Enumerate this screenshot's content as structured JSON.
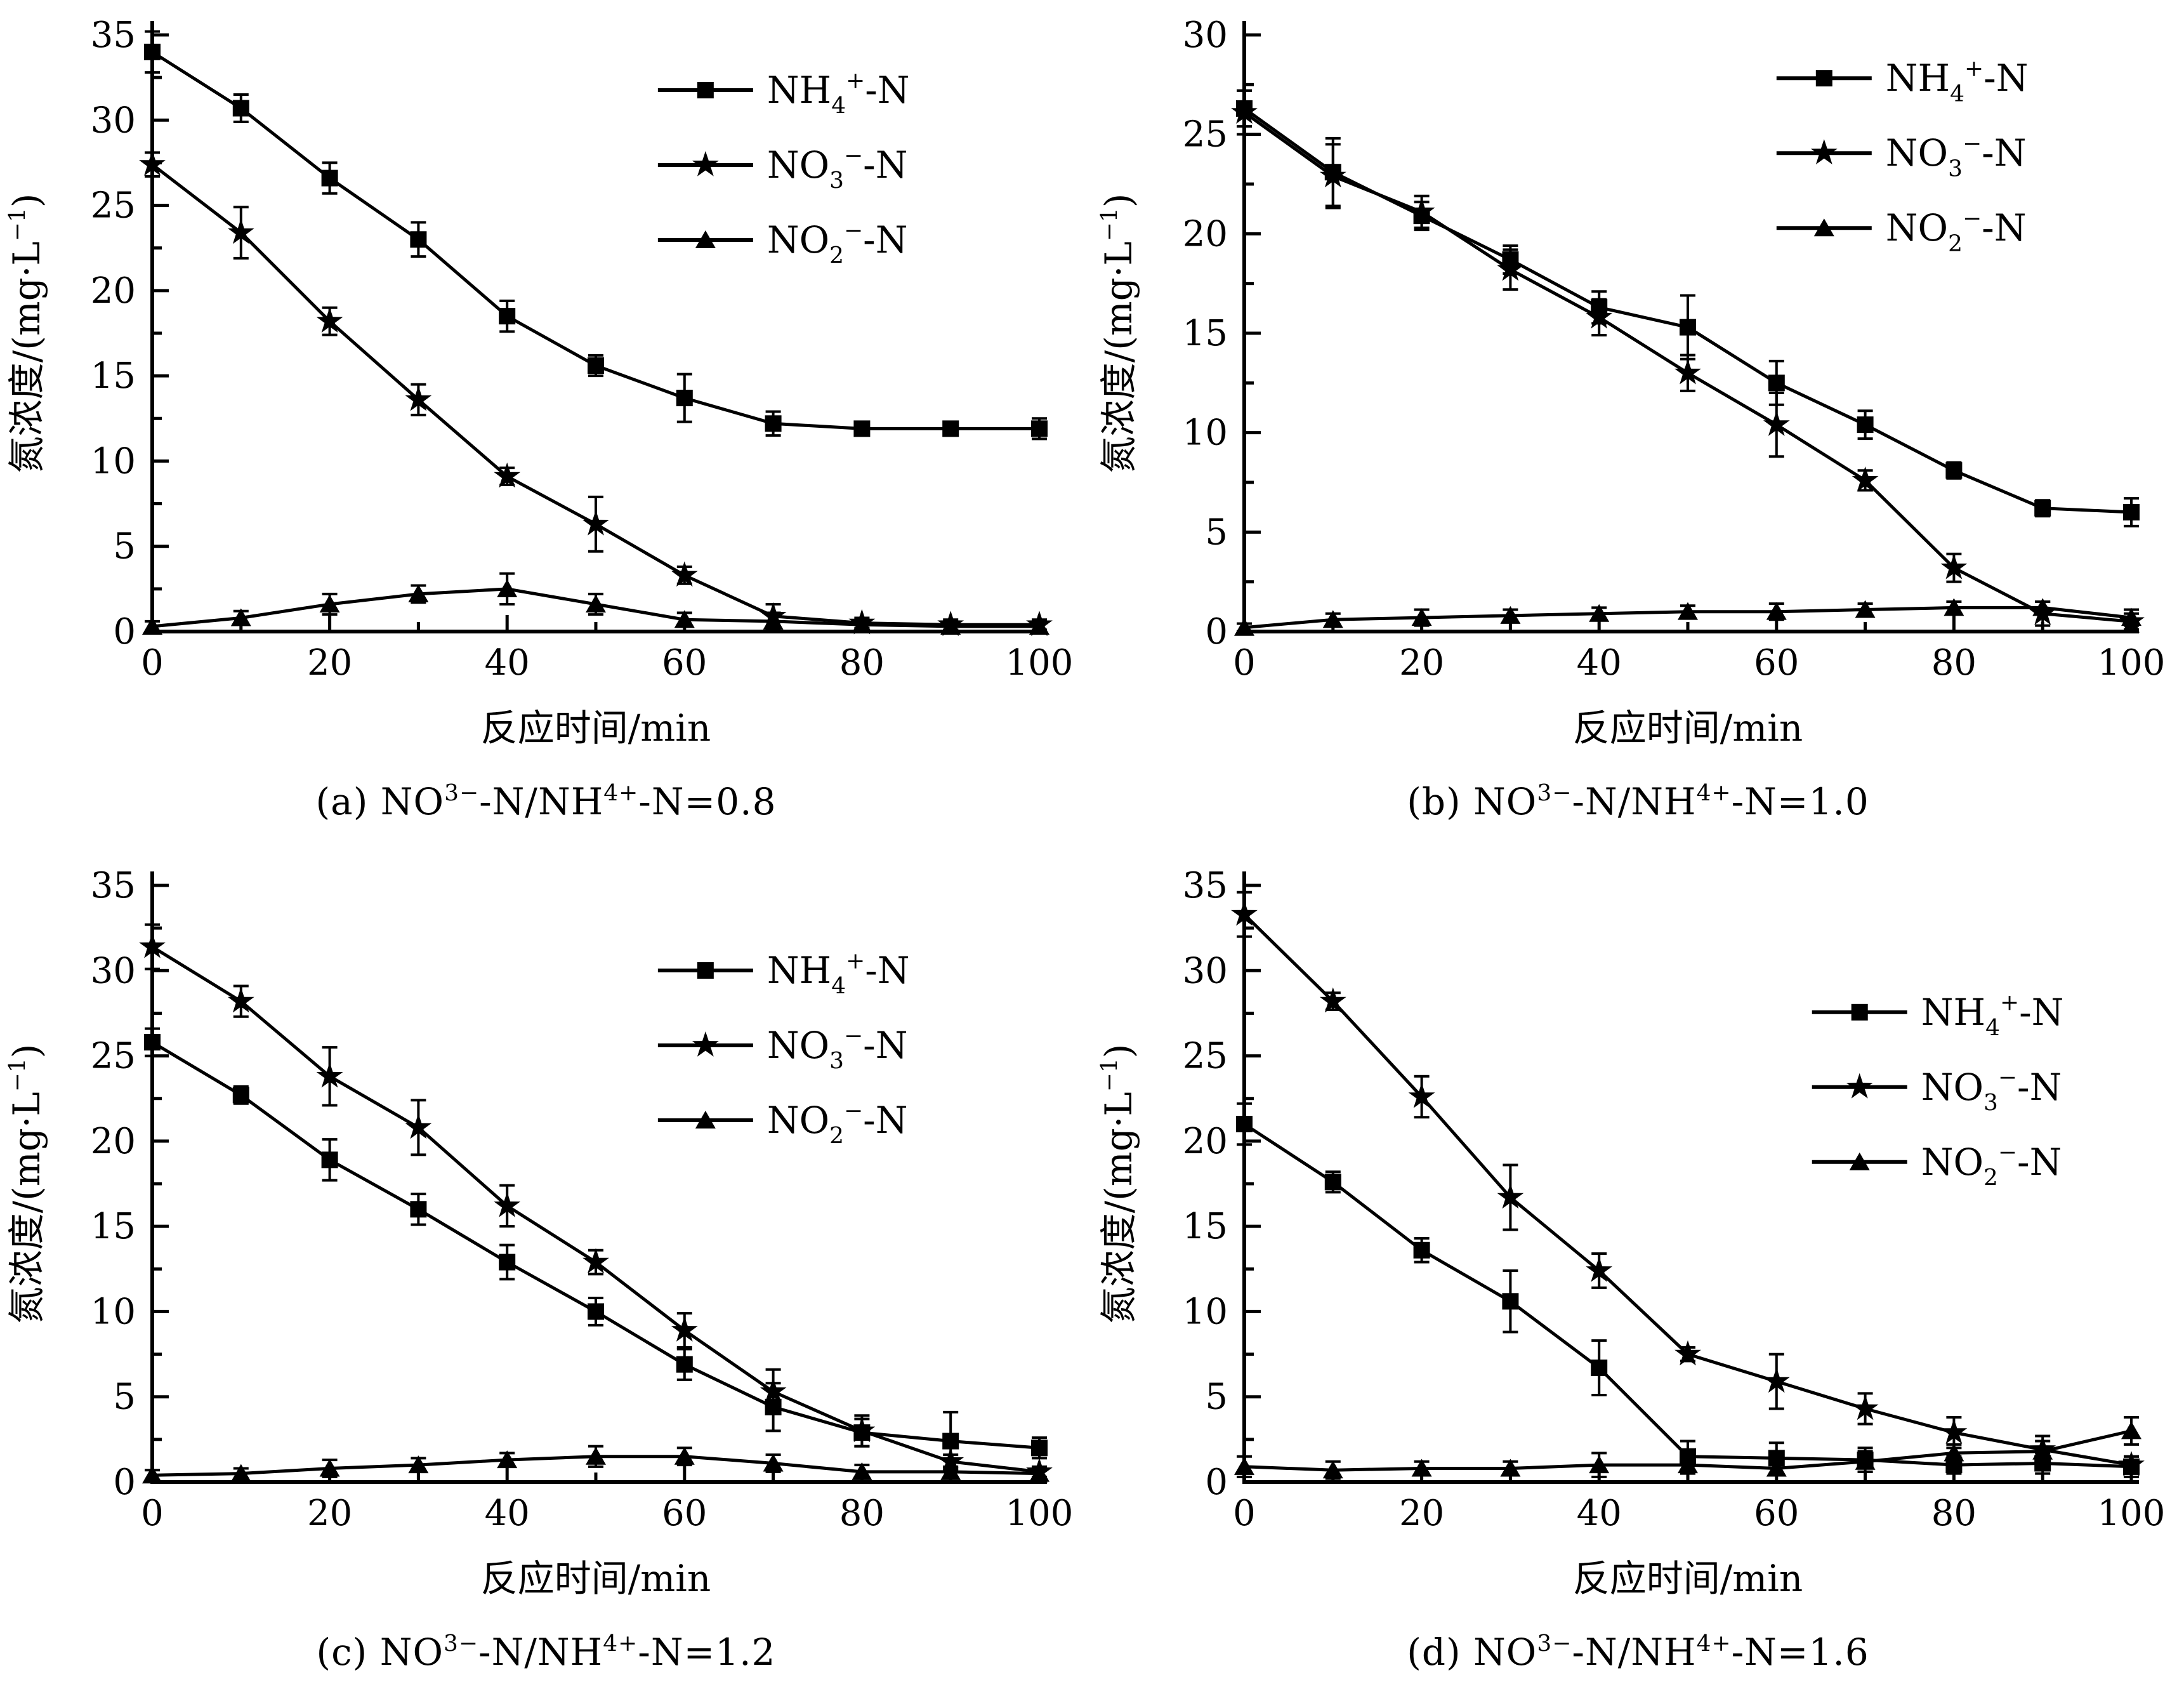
{
  "figure": {
    "xlabel": "反应时间/min",
    "ylabel": "氮浓度/(mg·L⁻¹)",
    "x_major_ticks": [
      0,
      20,
      40,
      60,
      80,
      100
    ],
    "x_minor_step": 10,
    "y_minor_step": 2.5,
    "colors": {
      "ink": "#000000",
      "paper": "#ffffff"
    }
  },
  "legend_entries": [
    {
      "marker": "square",
      "label": "NH₄⁺-N"
    },
    {
      "marker": "star",
      "label": "NO₃⁻-N"
    },
    {
      "marker": "triangle",
      "label": "NO₂⁻-N"
    }
  ],
  "chart_data": [
    {
      "id": "a",
      "type": "line",
      "caption": "(a) NO₃⁻-N/NH₄⁺-N=0.8",
      "xlabel": "反应时间/min",
      "ylabel": "氮浓度/(mg·L⁻¹)",
      "x": [
        0,
        10,
        20,
        30,
        40,
        50,
        60,
        70,
        80,
        90,
        100
      ],
      "xlim": [
        0,
        100
      ],
      "ylim": [
        0,
        35
      ],
      "ytick_step": 5,
      "legend_pos": {
        "x": 0.57,
        "y": 0.05
      },
      "series": [
        {
          "name": "NH₄⁺-N",
          "marker": "square",
          "values": [
            34.0,
            30.7,
            26.6,
            23.0,
            18.5,
            15.6,
            13.7,
            12.2,
            11.9,
            11.9,
            11.9
          ],
          "errors": [
            1.2,
            0.8,
            0.9,
            1.0,
            0.9,
            0.6,
            1.4,
            0.7,
            0.3,
            0.3,
            0.6
          ]
        },
        {
          "name": "NO₃⁻-N",
          "marker": "star",
          "values": [
            27.4,
            23.4,
            18.2,
            13.6,
            9.1,
            6.3,
            3.3,
            0.9,
            0.5,
            0.4,
            0.4
          ],
          "errors": [
            0.7,
            1.5,
            0.8,
            0.9,
            0.5,
            1.6,
            0.5,
            0.7,
            0.3,
            0.3,
            0.3
          ]
        },
        {
          "name": "NO₂⁻-N",
          "marker": "triangle",
          "values": [
            0.3,
            0.8,
            1.6,
            2.2,
            2.5,
            1.6,
            0.7,
            0.6,
            0.4,
            0.3,
            0.3
          ],
          "errors": [
            0.3,
            0.4,
            0.6,
            0.5,
            0.9,
            0.6,
            0.4,
            0.5,
            0.3,
            0.2,
            0.2
          ]
        }
      ]
    },
    {
      "id": "b",
      "type": "line",
      "caption": "(b) NO₃⁻-N/NH₄⁺-N=1.0",
      "xlabel": "反应时间/min",
      "ylabel": "氮浓度/(mg·L⁻¹)",
      "x": [
        0,
        10,
        20,
        30,
        40,
        50,
        60,
        70,
        80,
        90,
        100
      ],
      "xlim": [
        0,
        100
      ],
      "ylim": [
        0,
        30
      ],
      "ytick_step": 5,
      "legend_pos": {
        "x": 0.6,
        "y": 0.03
      },
      "series": [
        {
          "name": "NH₄⁺-N",
          "marker": "square",
          "values": [
            26.3,
            23.1,
            20.9,
            18.7,
            16.3,
            15.3,
            12.5,
            10.4,
            8.1,
            6.2,
            6.0
          ],
          "errors": [
            0.9,
            1.7,
            0.7,
            0.7,
            0.8,
            1.6,
            1.1,
            0.7,
            0.4,
            0.4,
            0.7
          ]
        },
        {
          "name": "NO₃⁻-N",
          "marker": "star",
          "values": [
            26.1,
            22.9,
            21.1,
            18.2,
            15.8,
            13.0,
            10.4,
            7.6,
            3.2,
            0.9,
            0.5
          ],
          "errors": [
            1.1,
            1.6,
            0.8,
            1.0,
            0.9,
            0.9,
            1.6,
            0.5,
            0.7,
            0.6,
            0.4
          ]
        },
        {
          "name": "NO₂⁻-N",
          "marker": "triangle",
          "values": [
            0.2,
            0.6,
            0.7,
            0.8,
            0.9,
            1.0,
            1.0,
            1.1,
            1.2,
            1.2,
            0.7
          ],
          "errors": [
            0.2,
            0.3,
            0.4,
            0.3,
            0.3,
            0.3,
            0.4,
            0.3,
            0.3,
            0.3,
            0.4
          ]
        }
      ]
    },
    {
      "id": "c",
      "type": "line",
      "caption": "(c) NO₃⁻-N/NH₄⁺-N=1.2",
      "xlabel": "反应时间/min",
      "ylabel": "氮浓度/(mg·L⁻¹)",
      "x": [
        0,
        10,
        20,
        30,
        40,
        50,
        60,
        70,
        80,
        90,
        100
      ],
      "xlim": [
        0,
        100
      ],
      "ylim": [
        0,
        35
      ],
      "ytick_step": 5,
      "legend_pos": {
        "x": 0.57,
        "y": 0.1
      },
      "series": [
        {
          "name": "NH₄⁺-N",
          "marker": "square",
          "values": [
            25.8,
            22.7,
            18.9,
            16.0,
            12.9,
            10.0,
            6.9,
            4.4,
            2.9,
            2.4,
            2.0
          ],
          "errors": [
            0.8,
            0.5,
            1.2,
            0.9,
            1.0,
            0.8,
            0.9,
            1.4,
            0.8,
            1.7,
            0.6
          ]
        },
        {
          "name": "NO₃⁻-N",
          "marker": "star",
          "values": [
            31.4,
            28.2,
            23.8,
            20.8,
            16.2,
            12.9,
            8.9,
            5.3,
            3.0,
            1.2,
            0.6
          ],
          "errors": [
            1.3,
            0.9,
            1.7,
            1.6,
            1.2,
            0.7,
            1.0,
            1.3,
            0.9,
            0.4,
            0.3
          ]
        },
        {
          "name": "NO₂⁻-N",
          "marker": "triangle",
          "values": [
            0.4,
            0.5,
            0.8,
            1.0,
            1.3,
            1.5,
            1.5,
            1.1,
            0.6,
            0.6,
            0.5
          ],
          "errors": [
            0.3,
            0.3,
            0.5,
            0.4,
            0.4,
            0.6,
            0.5,
            0.5,
            0.4,
            0.3,
            0.3
          ]
        }
      ]
    },
    {
      "id": "d",
      "type": "line",
      "caption": "(d) NO₃⁻-N/NH₄⁺-N=1.6",
      "xlabel": "反应时间/min",
      "ylabel": "氮浓度/(mg·L⁻¹)",
      "x": [
        0,
        10,
        20,
        30,
        40,
        50,
        60,
        70,
        80,
        90,
        100
      ],
      "xlim": [
        0,
        100
      ],
      "ylim": [
        0,
        35
      ],
      "ytick_step": 5,
      "legend_pos": {
        "x": 0.64,
        "y": 0.17
      },
      "series": [
        {
          "name": "NH₄⁺-N",
          "marker": "square",
          "values": [
            21.0,
            17.6,
            13.6,
            10.6,
            6.7,
            1.5,
            1.4,
            1.3,
            1.0,
            1.1,
            0.9
          ],
          "errors": [
            1.2,
            0.6,
            0.7,
            1.8,
            1.6,
            0.9,
            0.9,
            0.7,
            0.5,
            0.6,
            0.6
          ]
        },
        {
          "name": "NO₃⁻-N",
          "marker": "star",
          "values": [
            33.3,
            28.2,
            22.6,
            16.7,
            12.4,
            7.5,
            5.9,
            4.3,
            2.9,
            1.9,
            1.0
          ],
          "errors": [
            1.3,
            0.5,
            1.2,
            1.9,
            1.0,
            0.4,
            1.6,
            0.9,
            0.9,
            0.8,
            0.5
          ]
        },
        {
          "name": "NO₂⁻-N",
          "marker": "triangle",
          "values": [
            0.9,
            0.7,
            0.8,
            0.8,
            1.0,
            1.0,
            0.8,
            1.2,
            1.7,
            1.8,
            3.0
          ],
          "errors": [
            0.6,
            0.5,
            0.4,
            0.4,
            0.7,
            0.5,
            0.8,
            0.6,
            0.5,
            0.6,
            0.8
          ]
        }
      ]
    }
  ]
}
